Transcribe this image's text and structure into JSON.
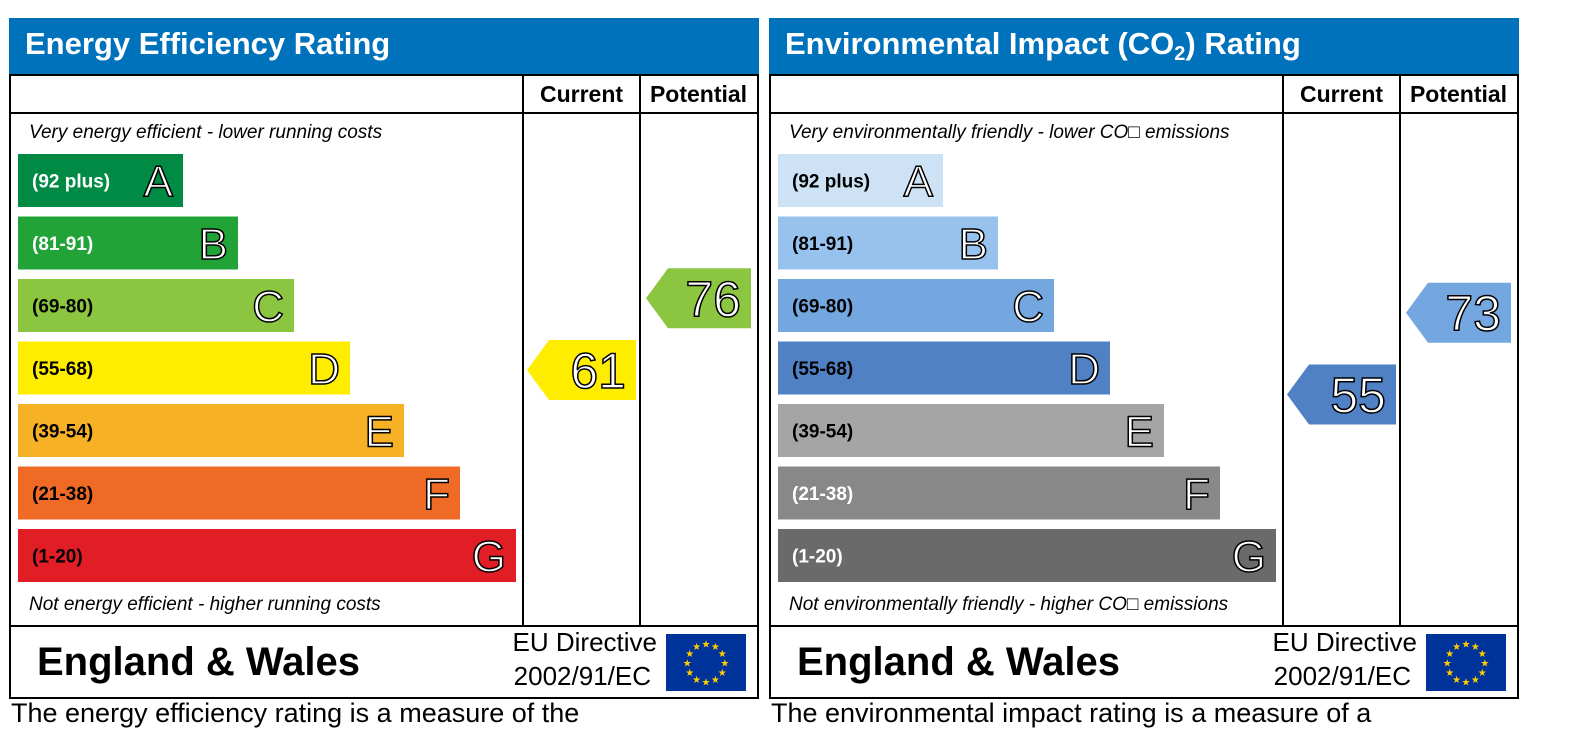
{
  "chart_data": [
    {
      "type": "bar",
      "title": "Energy Efficiency Rating",
      "column_headers": [
        "Current",
        "Potential"
      ],
      "top_note": "Very energy efficient - lower running costs",
      "bottom_note": "Not energy efficient - higher running costs",
      "bands": [
        {
          "range": "(92 plus)",
          "letter": "A",
          "color": "#008a44",
          "text_color": "#ffffff"
        },
        {
          "range": "(81-91)",
          "letter": "B",
          "color": "#22a338",
          "text_color": "#ffffff"
        },
        {
          "range": "(69-80)",
          "letter": "C",
          "color": "#8cc640",
          "text_color": "#000000"
        },
        {
          "range": "(55-68)",
          "letter": "D",
          "color": "#ffed00",
          "text_color": "#000000"
        },
        {
          "range": "(39-54)",
          "letter": "E",
          "color": "#f7b124",
          "text_color": "#000000"
        },
        {
          "range": "(21-38)",
          "letter": "F",
          "color": "#ee6a25",
          "text_color": "#000000"
        },
        {
          "range": "(1-20)",
          "letter": "G",
          "color": "#e11e26",
          "text_color": "#000000"
        }
      ],
      "current": {
        "value": 61,
        "color": "#ffed00"
      },
      "potential": {
        "value": 76,
        "color": "#8cc640"
      },
      "region": "England & Wales",
      "directive_line1": "EU Directive",
      "directive_line2": "2002/91/EC"
    },
    {
      "type": "bar",
      "title": "Environmental Impact (CO",
      "title_sub": "2",
      "title_suffix": ") Rating",
      "column_headers": [
        "Current",
        "Potential"
      ],
      "top_note": "Very environmentally friendly - lower CO□ emissions",
      "bottom_note": "Not environmentally friendly - higher CO□ emissions",
      "bands": [
        {
          "range": "(92 plus)",
          "letter": "A",
          "color": "#cde3f5",
          "text_color": "#000000"
        },
        {
          "range": "(81-91)",
          "letter": "B",
          "color": "#98c2ee",
          "text_color": "#000000"
        },
        {
          "range": "(69-80)",
          "letter": "C",
          "color": "#74a7df",
          "text_color": "#000000"
        },
        {
          "range": "(55-68)",
          "letter": "D",
          "color": "#4f81c4",
          "text_color": "#000000"
        },
        {
          "range": "(39-54)",
          "letter": "E",
          "color": "#a5a5a5",
          "text_color": "#000000"
        },
        {
          "range": "(21-38)",
          "letter": "F",
          "color": "#888888",
          "text_color": "#ffffff"
        },
        {
          "range": "(1-20)",
          "letter": "G",
          "color": "#6a6a6a",
          "text_color": "#ffffff"
        }
      ],
      "current": {
        "value": 55,
        "color": "#4f81c4"
      },
      "potential": {
        "value": 73,
        "color": "#74a7df"
      },
      "region": "England & Wales",
      "directive_line1": "EU Directive",
      "directive_line2": "2002/91/EC"
    }
  ],
  "captions": {
    "left": "The energy efficiency rating is a measure of the",
    "right": "The environmental impact rating is a measure of a"
  },
  "colors": {
    "header_bg": "#0072bc",
    "eu_flag_bg": "#003399",
    "eu_star": "#ffcc00"
  }
}
